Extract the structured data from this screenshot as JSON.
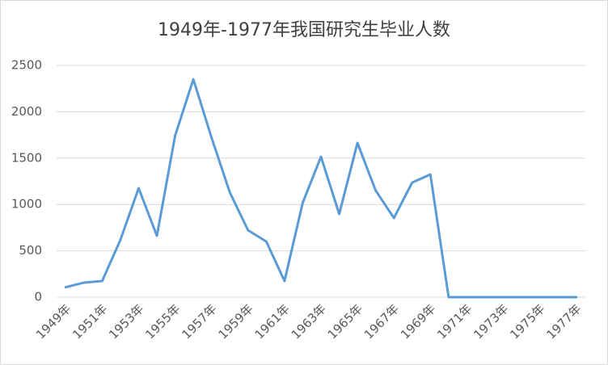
{
  "chart_data": {
    "type": "line",
    "title": "1949年-1977年我国研究生毕业人数",
    "categories": [
      "1949年",
      null,
      "1951年",
      null,
      "1953年",
      null,
      "1955年",
      null,
      "1957年",
      null,
      "1959年",
      null,
      "1961年",
      null,
      "1963年",
      null,
      "1965年",
      null,
      "1967年",
      null,
      "1969年",
      null,
      "1971年",
      null,
      "1973年",
      null,
      "1975年",
      null,
      "1977年"
    ],
    "values": [
      107,
      157,
      174,
      618,
      1176,
      662,
      1742,
      2350,
      1720,
      1130,
      722,
      600,
      174,
      1020,
      1515,
      897,
      1663,
      1150,
      854,
      1236,
      1324,
      0,
      0,
      0,
      0,
      0,
      0,
      0,
      0
    ],
    "color": "#5b9bd5",
    "ylim": [
      0,
      2500
    ],
    "yticks": [
      0,
      500,
      1000,
      1500,
      2000,
      2500
    ],
    "grid": true
  }
}
